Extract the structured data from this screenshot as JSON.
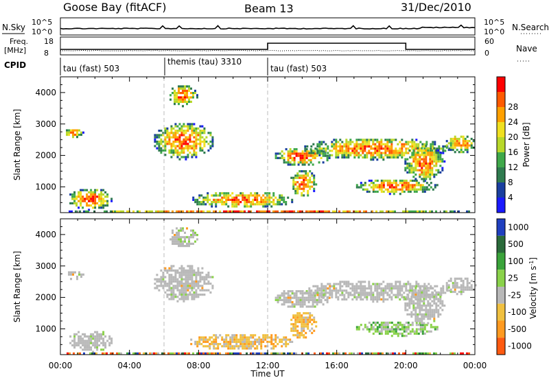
{
  "header": {
    "station": "Goose Bay (fitACF)",
    "beam": "Beam 13",
    "date": "31/Dec/2010"
  },
  "strip": {
    "nsky_label": "N.Sky",
    "nsky_ticks": [
      "10^5",
      "10^0"
    ],
    "nsearch_label": "N.Search",
    "freq_label_1": "Freq.",
    "freq_label_2": "[MHz]",
    "freq_ticks": [
      "18",
      "8"
    ],
    "nave_label": "Nave",
    "nave_ticks": [
      "60",
      "0"
    ],
    "cpid_label": "CPID",
    "cpid_segments": [
      {
        "label": "tau (fast) 503",
        "start_hour": 0
      },
      {
        "label": "themis (tau) 3310",
        "start_hour": 6
      },
      {
        "label": "tau (fast) 503",
        "start_hour": 12
      }
    ]
  },
  "colors": {
    "power": [
      "#1a1aff",
      "#1a3fa0",
      "#2f7b4f",
      "#3fa84a",
      "#b8d82a",
      "#f0e020",
      "#ffa000",
      "#ff5a00",
      "#ff0000"
    ],
    "velocity": [
      "#1f3fbf",
      "#2a6a3a",
      "#3aa33a",
      "#8ad24a",
      "#b8b8b8",
      "#f0c040",
      "#ff9a20",
      "#ff5a10",
      "#ff0000"
    ]
  },
  "chart_data": [
    {
      "type": "heatmap",
      "ylabel": "Slant Range [km]",
      "xlabel": "Time UT",
      "x_ticks": [
        "00:00",
        "04:00",
        "08:00",
        "12:00",
        "16:00",
        "20:00",
        "00:00"
      ],
      "y_ticks": [
        1000,
        2000,
        3000,
        4000
      ],
      "ylim": [
        180,
        4500
      ],
      "colorbar_label": "Power [dB]",
      "colorbar_ticks": [
        "4",
        "8",
        "12",
        "16",
        "20",
        "24",
        "28"
      ],
      "echo_regions": [
        {
          "t0": 0.2,
          "t1": 1.3,
          "r0": 2600,
          "r1": 2900
        },
        {
          "t0": 0.4,
          "t1": 3.0,
          "r0": 300,
          "r1": 1000
        },
        {
          "t0": 5.3,
          "t1": 8.9,
          "r0": 1900,
          "r1": 3100
        },
        {
          "t0": 6.2,
          "t1": 7.9,
          "r0": 3600,
          "r1": 4300
        },
        {
          "t0": 7.4,
          "t1": 13.5,
          "r0": 350,
          "r1": 900
        },
        {
          "t0": 13.2,
          "t1": 14.8,
          "r0": 700,
          "r1": 1600
        },
        {
          "t0": 12.3,
          "t1": 15.6,
          "r0": 1700,
          "r1": 2300
        },
        {
          "t0": 14.0,
          "t1": 22.5,
          "r0": 1900,
          "r1": 2600
        },
        {
          "t0": 17.0,
          "t1": 21.8,
          "r0": 800,
          "r1": 1300
        },
        {
          "t0": 19.8,
          "t1": 22.2,
          "r0": 1200,
          "r1": 2400
        },
        {
          "t0": 22.2,
          "t1": 24.0,
          "r0": 2100,
          "r1": 2700
        },
        {
          "t0": 0.0,
          "t1": 24.0,
          "r0": 200,
          "r1": 320
        }
      ]
    },
    {
      "type": "heatmap",
      "ylabel": "Slant Range [km]",
      "xlabel": "Time UT",
      "x_ticks": [
        "00:00",
        "04:00",
        "08:00",
        "12:00",
        "16:00",
        "20:00",
        "00:00"
      ],
      "y_ticks": [
        1000,
        2000,
        3000,
        4000
      ],
      "ylim": [
        180,
        4500
      ],
      "colorbar_label": "Velocity [m s",
      "colorbar_unit_sup": "-1",
      "colorbar_ticks": [
        "1000",
        "500",
        "100",
        "25",
        "-25",
        "-100",
        "-500",
        "-1000"
      ],
      "echo_regions": [
        {
          "t0": 0.2,
          "t1": 1.3,
          "r0": 2600,
          "r1": 2900
        },
        {
          "t0": 0.4,
          "t1": 3.0,
          "r0": 300,
          "r1": 1000
        },
        {
          "t0": 5.3,
          "t1": 8.9,
          "r0": 1900,
          "r1": 3100
        },
        {
          "t0": 6.2,
          "t1": 7.9,
          "r0": 3600,
          "r1": 4300
        },
        {
          "t0": 7.4,
          "t1": 13.5,
          "r0": 350,
          "r1": 900
        },
        {
          "t0": 13.2,
          "t1": 14.8,
          "r0": 700,
          "r1": 1600
        },
        {
          "t0": 12.3,
          "t1": 15.6,
          "r0": 1700,
          "r1": 2300
        },
        {
          "t0": 14.0,
          "t1": 22.5,
          "r0": 1900,
          "r1": 2600
        },
        {
          "t0": 17.0,
          "t1": 21.8,
          "r0": 800,
          "r1": 1300
        },
        {
          "t0": 19.8,
          "t1": 22.2,
          "r0": 1200,
          "r1": 2400
        },
        {
          "t0": 22.2,
          "t1": 24.0,
          "r0": 2100,
          "r1": 2700
        },
        {
          "t0": 0.0,
          "t1": 24.0,
          "r0": 200,
          "r1": 320
        }
      ]
    }
  ]
}
